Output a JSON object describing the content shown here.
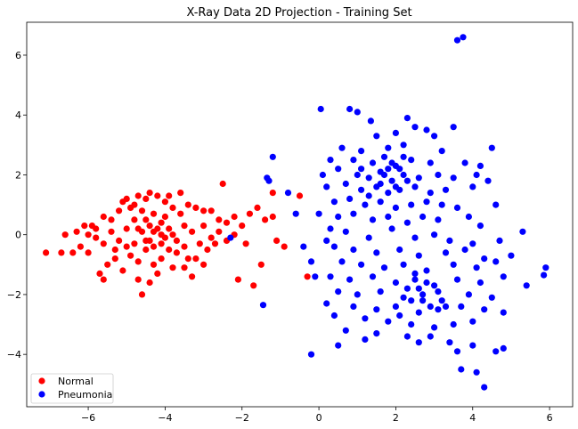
{
  "chart_data": {
    "type": "scatter",
    "title": "X-Ray Data 2D Projection - Training Set",
    "xlabel": "",
    "ylabel": "",
    "xlim": [
      -7.6,
      6.6
    ],
    "ylim": [
      -5.75,
      7.1
    ],
    "xticks": [
      "−6",
      "−4",
      "−2",
      "0",
      "2",
      "4",
      "6"
    ],
    "xtick_values": [
      -6,
      -4,
      -2,
      0,
      2,
      4,
      6
    ],
    "yticks": [
      "−4",
      "−2",
      "0",
      "2",
      "4",
      "6"
    ],
    "ytick_values": [
      -4,
      -2,
      0,
      2,
      4,
      6
    ],
    "grid": false,
    "legend_position": "lower-left",
    "series": [
      {
        "name": "Normal",
        "color": "#ff0000",
        "points": [
          [
            -7.1,
            -0.6
          ],
          [
            -6.7,
            -0.6
          ],
          [
            -6.6,
            0.0
          ],
          [
            -6.4,
            -0.6
          ],
          [
            -6.3,
            0.1
          ],
          [
            -6.2,
            -0.4
          ],
          [
            -6.1,
            0.3
          ],
          [
            -6.0,
            -0.6
          ],
          [
            -5.9,
            0.3
          ],
          [
            -5.8,
            -0.1
          ],
          [
            -5.7,
            -1.3
          ],
          [
            -5.6,
            -1.5
          ],
          [
            -5.6,
            0.6
          ],
          [
            -5.5,
            -1.0
          ],
          [
            -5.4,
            0.5
          ],
          [
            -5.3,
            -0.8
          ],
          [
            -5.2,
            0.8
          ],
          [
            -5.1,
            1.1
          ],
          [
            -5.0,
            1.2
          ],
          [
            -4.8,
            1.0
          ],
          [
            -4.7,
            1.3
          ],
          [
            -4.5,
            1.2
          ],
          [
            -4.4,
            1.4
          ],
          [
            -4.2,
            1.3
          ],
          [
            -4.0,
            1.1
          ],
          [
            -3.9,
            1.3
          ],
          [
            -3.6,
            1.4
          ],
          [
            -3.4,
            1.0
          ],
          [
            -3.2,
            0.9
          ],
          [
            -3.0,
            0.8
          ],
          [
            -2.8,
            0.8
          ],
          [
            -2.5,
            1.7
          ],
          [
            -2.6,
            0.5
          ],
          [
            -2.4,
            0.4
          ],
          [
            -2.2,
            0.6
          ],
          [
            -2.0,
            0.3
          ],
          [
            -1.8,
            0.7
          ],
          [
            -1.6,
            0.9
          ],
          [
            -1.4,
            0.5
          ],
          [
            -1.2,
            1.4
          ],
          [
            -1.1,
            -0.2
          ],
          [
            -0.9,
            -0.4
          ],
          [
            -1.2,
            0.6
          ],
          [
            -0.5,
            1.3
          ],
          [
            -1.9,
            -0.3
          ],
          [
            -2.1,
            -1.5
          ],
          [
            -1.7,
            -1.7
          ],
          [
            -1.5,
            -1.0
          ],
          [
            -4.6,
            -2.0
          ],
          [
            -4.7,
            -1.5
          ],
          [
            -4.4,
            -1.6
          ],
          [
            -3.3,
            -1.4
          ],
          [
            -3.5,
            -1.1
          ],
          [
            -3.2,
            -0.8
          ],
          [
            -2.9,
            -0.5
          ],
          [
            -2.7,
            -0.3
          ],
          [
            -2.4,
            -0.2
          ],
          [
            -2.2,
            0.0
          ],
          [
            -3.0,
            -1.0
          ],
          [
            -0.3,
            -1.4
          ],
          [
            -4.8,
            -0.3
          ],
          [
            -4.6,
            0.1
          ],
          [
            -4.4,
            -0.2
          ],
          [
            -4.2,
            0.2
          ],
          [
            -4.0,
            -0.1
          ],
          [
            -3.8,
            0.0
          ],
          [
            -4.5,
            0.5
          ],
          [
            -4.3,
            0.7
          ],
          [
            -4.1,
            0.4
          ],
          [
            -3.9,
            -0.5
          ],
          [
            -5.0,
            0.2
          ],
          [
            -5.2,
            -0.2
          ],
          [
            -4.9,
            -0.7
          ],
          [
            -4.7,
            -0.9
          ],
          [
            -4.3,
            -1.0
          ],
          [
            -4.1,
            -0.8
          ],
          [
            -3.7,
            -0.6
          ],
          [
            -3.5,
            0.3
          ],
          [
            -3.3,
            0.1
          ],
          [
            -3.1,
            -0.3
          ],
          [
            -5.4,
            0.1
          ],
          [
            -5.6,
            -0.3
          ],
          [
            -5.8,
            0.2
          ],
          [
            -6.0,
            0.0
          ],
          [
            -5.3,
            -0.5
          ],
          [
            -5.1,
            -1.2
          ],
          [
            -4.9,
            0.9
          ],
          [
            -4.6,
            0.8
          ],
          [
            -4.2,
            -1.3
          ],
          [
            -3.8,
            -1.1
          ],
          [
            -3.6,
            0.7
          ],
          [
            -3.4,
            -0.8
          ],
          [
            -3.0,
            0.3
          ],
          [
            -2.8,
            -0.1
          ],
          [
            -2.6,
            0.1
          ],
          [
            -4.4,
            0.3
          ],
          [
            -4.0,
            0.6
          ],
          [
            -3.8,
            0.9
          ],
          [
            -4.8,
            0.5
          ],
          [
            -5.0,
            -0.4
          ],
          [
            -4.5,
            -0.5
          ],
          [
            -4.3,
            -0.4
          ],
          [
            -4.1,
            0.0
          ],
          [
            -3.9,
            0.2
          ],
          [
            -4.7,
            0.2
          ],
          [
            -4.5,
            -0.2
          ],
          [
            -4.3,
            0.1
          ],
          [
            -4.1,
            -0.3
          ],
          [
            -3.7,
            -0.2
          ],
          [
            -3.5,
            -0.4
          ]
        ]
      },
      {
        "name": "Pneumonia",
        "color": "#0000ff",
        "points": [
          [
            3.6,
            6.5
          ],
          [
            3.75,
            6.6
          ],
          [
            0.05,
            4.2
          ],
          [
            0.8,
            4.2
          ],
          [
            1.0,
            4.1
          ],
          [
            1.35,
            3.8
          ],
          [
            2.3,
            3.9
          ],
          [
            2.5,
            3.6
          ],
          [
            3.5,
            3.6
          ],
          [
            1.5,
            3.3
          ],
          [
            2.0,
            3.4
          ],
          [
            2.8,
            3.5
          ],
          [
            3.0,
            3.3
          ],
          [
            0.6,
            2.9
          ],
          [
            1.1,
            2.8
          ],
          [
            1.8,
            2.9
          ],
          [
            2.2,
            3.0
          ],
          [
            3.2,
            2.8
          ],
          [
            4.5,
            2.9
          ],
          [
            0.3,
            2.5
          ],
          [
            0.9,
            2.5
          ],
          [
            1.4,
            2.4
          ],
          [
            1.7,
            2.6
          ],
          [
            2.0,
            2.3
          ],
          [
            2.4,
            2.5
          ],
          [
            2.9,
            2.4
          ],
          [
            3.8,
            2.4
          ],
          [
            4.2,
            2.3
          ],
          [
            0.1,
            2.0
          ],
          [
            0.5,
            2.2
          ],
          [
            1.0,
            2.0
          ],
          [
            1.3,
            1.9
          ],
          [
            1.6,
            2.1
          ],
          [
            1.9,
            1.8
          ],
          [
            2.2,
            2.0
          ],
          [
            2.6,
            1.9
          ],
          [
            3.1,
            2.0
          ],
          [
            3.5,
            1.9
          ],
          [
            4.1,
            2.0
          ],
          [
            4.4,
            1.8
          ],
          [
            0.2,
            1.6
          ],
          [
            0.7,
            1.7
          ],
          [
            1.1,
            1.5
          ],
          [
            1.5,
            1.6
          ],
          [
            1.8,
            1.4
          ],
          [
            2.1,
            1.5
          ],
          [
            2.5,
            1.6
          ],
          [
            2.9,
            1.4
          ],
          [
            3.3,
            1.5
          ],
          [
            4.0,
            1.6
          ],
          [
            0.4,
            1.1
          ],
          [
            0.8,
            1.2
          ],
          [
            1.2,
            1.0
          ],
          [
            1.6,
            1.1
          ],
          [
            2.0,
            0.9
          ],
          [
            2.4,
            1.0
          ],
          [
            2.8,
            1.1
          ],
          [
            3.2,
            1.0
          ],
          [
            3.6,
            0.9
          ],
          [
            4.6,
            1.0
          ],
          [
            0.0,
            0.7
          ],
          [
            0.5,
            0.6
          ],
          [
            0.9,
            0.7
          ],
          [
            1.4,
            0.5
          ],
          [
            1.8,
            0.6
          ],
          [
            2.3,
            0.4
          ],
          [
            2.7,
            0.6
          ],
          [
            3.1,
            0.5
          ],
          [
            3.9,
            0.6
          ],
          [
            4.2,
            0.3
          ],
          [
            5.3,
            0.1
          ],
          [
            0.3,
            0.2
          ],
          [
            0.7,
            0.1
          ],
          [
            1.3,
            -0.1
          ],
          [
            1.9,
            0.2
          ],
          [
            2.5,
            -0.1
          ],
          [
            3.0,
            0.0
          ],
          [
            3.4,
            -0.2
          ],
          [
            4.0,
            -0.3
          ],
          [
            4.7,
            -0.2
          ],
          [
            0.4,
            -0.4
          ],
          [
            0.9,
            -0.5
          ],
          [
            1.5,
            -0.6
          ],
          [
            2.1,
            -0.5
          ],
          [
            2.6,
            -0.7
          ],
          [
            3.3,
            -0.6
          ],
          [
            3.8,
            -0.5
          ],
          [
            4.3,
            -0.8
          ],
          [
            5.0,
            -0.7
          ],
          [
            -0.2,
            -0.9
          ],
          [
            0.6,
            -0.9
          ],
          [
            1.1,
            -1.0
          ],
          [
            1.7,
            -1.1
          ],
          [
            2.2,
            -1.0
          ],
          [
            2.8,
            -1.2
          ],
          [
            3.5,
            -1.0
          ],
          [
            4.1,
            -1.1
          ],
          [
            4.6,
            -0.9
          ],
          [
            5.9,
            -1.1
          ],
          [
            5.85,
            -1.35
          ],
          [
            0.3,
            -1.4
          ],
          [
            0.8,
            -1.5
          ],
          [
            1.4,
            -1.4
          ],
          [
            2.0,
            -1.6
          ],
          [
            2.5,
            -1.5
          ],
          [
            3.0,
            -1.7
          ],
          [
            3.6,
            -1.5
          ],
          [
            4.2,
            -1.6
          ],
          [
            4.8,
            -1.4
          ],
          [
            5.4,
            -1.7
          ],
          [
            0.5,
            -1.9
          ],
          [
            1.0,
            -2.0
          ],
          [
            1.6,
            -1.9
          ],
          [
            2.2,
            -2.1
          ],
          [
            2.7,
            -2.0
          ],
          [
            3.2,
            -2.2
          ],
          [
            3.9,
            -2.0
          ],
          [
            4.5,
            -2.1
          ],
          [
            0.2,
            -2.3
          ],
          [
            0.9,
            -2.4
          ],
          [
            1.5,
            -2.5
          ],
          [
            2.0,
            -2.4
          ],
          [
            2.6,
            -2.6
          ],
          [
            3.1,
            -2.5
          ],
          [
            3.7,
            -2.4
          ],
          [
            4.3,
            -2.5
          ],
          [
            4.8,
            -2.6
          ],
          [
            0.4,
            -2.7
          ],
          [
            1.2,
            -2.8
          ],
          [
            1.8,
            -2.9
          ],
          [
            2.4,
            -3.0
          ],
          [
            3.0,
            -3.1
          ],
          [
            3.5,
            -3.0
          ],
          [
            4.0,
            -2.9
          ],
          [
            0.7,
            -3.2
          ],
          [
            1.5,
            -3.3
          ],
          [
            2.3,
            -3.4
          ],
          [
            2.9,
            -3.4
          ],
          [
            3.4,
            -3.6
          ],
          [
            1.2,
            -3.5
          ],
          [
            0.5,
            -3.7
          ],
          [
            2.6,
            -3.6
          ],
          [
            3.6,
            -3.9
          ],
          [
            4.0,
            -3.7
          ],
          [
            4.6,
            -3.9
          ],
          [
            4.8,
            -3.8
          ],
          [
            -0.2,
            -4.0
          ],
          [
            3.7,
            -4.5
          ],
          [
            4.1,
            -4.6
          ],
          [
            4.3,
            -5.1
          ],
          [
            -1.2,
            2.6
          ],
          [
            -1.3,
            1.8
          ],
          [
            -1.35,
            1.9
          ],
          [
            -1.45,
            -2.35
          ],
          [
            -0.8,
            1.4
          ],
          [
            -0.6,
            0.7
          ],
          [
            -0.1,
            -1.4
          ],
          [
            -2.3,
            -0.1
          ],
          [
            -0.4,
            -0.4
          ],
          [
            0.2,
            -0.2
          ],
          [
            1.9,
            2.4
          ],
          [
            2.1,
            2.2
          ],
          [
            1.7,
            2.0
          ],
          [
            2.3,
            1.8
          ],
          [
            1.6,
            1.7
          ],
          [
            2.0,
            1.6
          ],
          [
            1.8,
            2.2
          ],
          [
            2.2,
            2.6
          ],
          [
            2.6,
            -1.8
          ],
          [
            2.8,
            -1.6
          ],
          [
            2.4,
            -2.2
          ],
          [
            2.9,
            -2.4
          ],
          [
            2.7,
            -2.2
          ],
          [
            3.1,
            -1.9
          ],
          [
            2.5,
            -1.3
          ],
          [
            2.3,
            -1.8
          ],
          [
            3.3,
            -2.4
          ],
          [
            2.1,
            -2.7
          ],
          [
            1.3,
            1.3
          ],
          [
            1.1,
            2.2
          ]
        ]
      }
    ]
  }
}
